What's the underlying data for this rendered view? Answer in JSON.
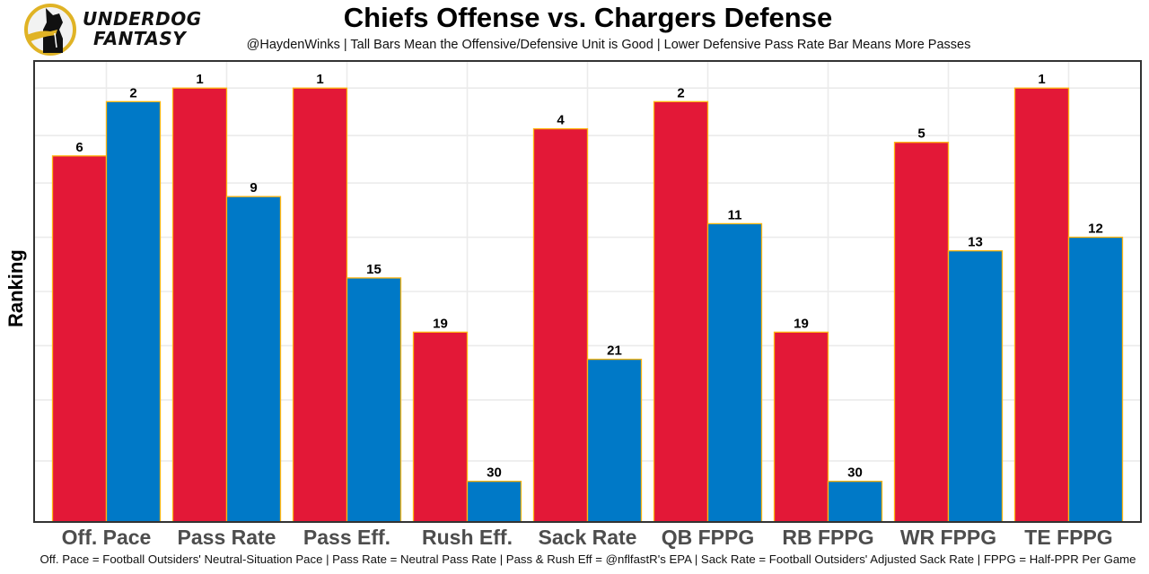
{
  "brand": {
    "line1": "UNDERDOG",
    "line2": "FANTASY",
    "logo": "underdog-dog-logo"
  },
  "colors": {
    "offense": "#E31837",
    "defense": "#0079C7",
    "bar_outline": "#FFB612",
    "grid": "#ebebeb",
    "panel_border": "#333333"
  },
  "chart_data": {
    "type": "bar",
    "title": "Chiefs Offense vs. Chargers Defense",
    "subtitle": "@HaydenWinks | Tall Bars Mean the Offensive/Defensive Unit is Good | Lower Defensive Pass Rate Bar Means More Passes",
    "caption": "Off. Pace = Football Outsiders' Neutral-Situation Pace | Pass Rate = Neutral Pass Rate | Pass & Rush Eff = @nflfastR's EPA | Sack Rate = Football Outsiders' Adjusted Sack Rate | FPPG = Half-PPR Per Game",
    "xlabel": "",
    "ylabel": "Ranking",
    "categories": [
      "Off. Pace",
      "Pass Rate",
      "Pass Eff.",
      "Rush Eff.",
      "Sack Rate",
      "QB FPPG",
      "RB FPPG",
      "WR FPPG",
      "TE FPPG"
    ],
    "series": [
      {
        "name": "Chiefs Offense",
        "values": [
          6,
          1,
          1,
          19,
          4,
          2,
          19,
          5,
          1
        ]
      },
      {
        "name": "Chargers Defense",
        "values": [
          2,
          9,
          15,
          30,
          21,
          11,
          30,
          13,
          12
        ]
      }
    ],
    "bar_height_rule": "height = 33 - ranking",
    "ylim": [
      0,
      34
    ],
    "y_gridlines": [
      4.5,
      9,
      13,
      17,
      21,
      25,
      28.5,
      32
    ],
    "y_ticks_shown": false,
    "grid": true,
    "legend": "none"
  }
}
